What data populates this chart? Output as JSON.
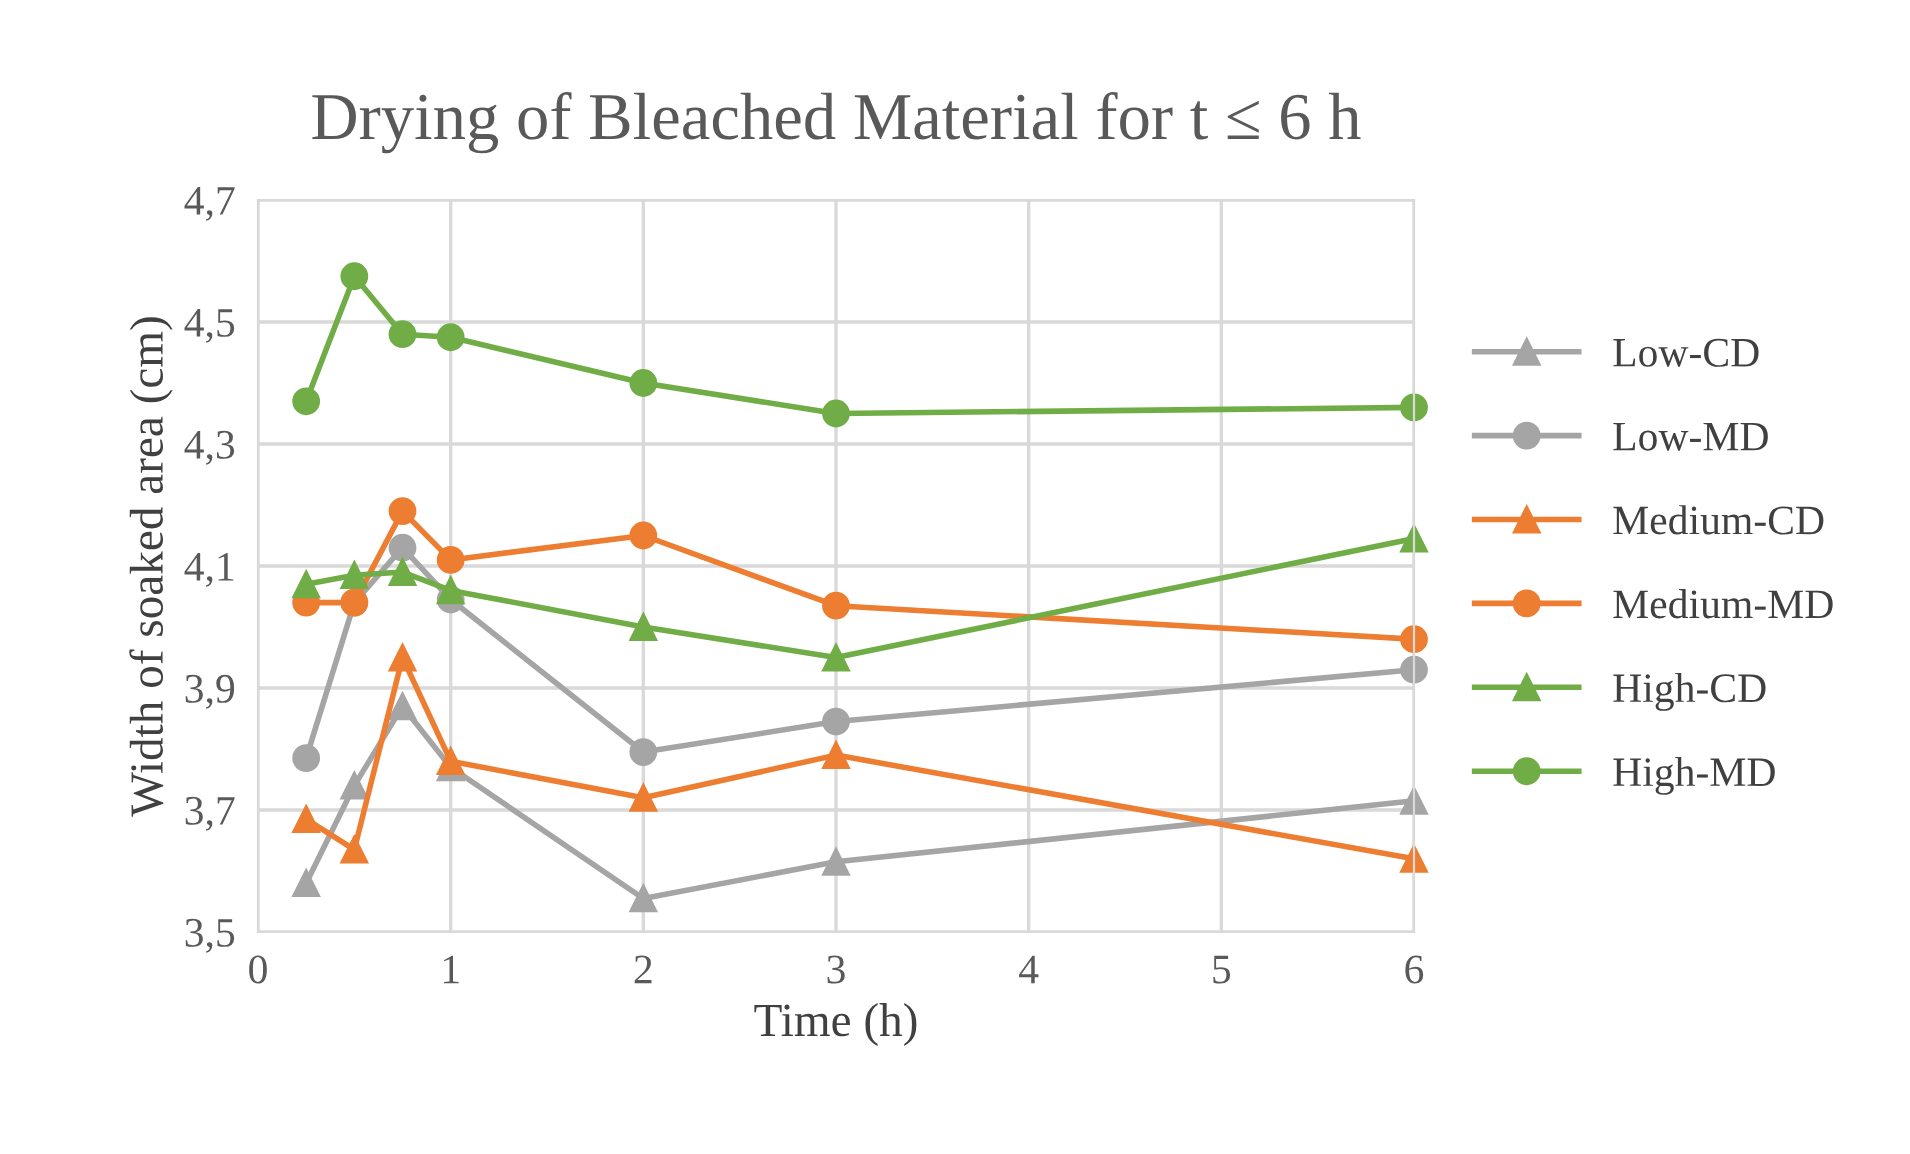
{
  "chart_data": {
    "type": "line",
    "title": "Drying of Bleached Material for t ≤ 6 h",
    "xlabel": "Time (h)",
    "ylabel": "Width of soaked area (cm)",
    "x": [
      0.25,
      0.5,
      0.75,
      1,
      2,
      3,
      6
    ],
    "xlim": [
      0,
      6
    ],
    "xticks": [
      0,
      1,
      2,
      3,
      4,
      5,
      6
    ],
    "ylim": [
      3.5,
      4.7
    ],
    "yticks": [
      {
        "value": 3.5,
        "label": "3,5"
      },
      {
        "value": 3.7,
        "label": "3,7"
      },
      {
        "value": 3.9,
        "label": "3,9"
      },
      {
        "value": 4.1,
        "label": "4,1"
      },
      {
        "value": 4.3,
        "label": "4,3"
      },
      {
        "value": 4.5,
        "label": "4,5"
      },
      {
        "value": 4.7,
        "label": "4,7"
      }
    ],
    "grid": true,
    "legend": "right",
    "series": [
      {
        "name": "Low-CD",
        "color": "#a5a5a5",
        "marker": "triangle",
        "values": [
          3.58,
          3.74,
          3.87,
          3.77,
          3.555,
          3.615,
          3.715
        ]
      },
      {
        "name": "Low-MD",
        "color": "#a5a5a5",
        "marker": "circle",
        "values": [
          3.785,
          4.04,
          4.13,
          4.045,
          3.795,
          3.845,
          3.93
        ]
      },
      {
        "name": "Medium-CD",
        "color": "#ed7d31",
        "marker": "triangle",
        "values": [
          3.685,
          3.635,
          3.95,
          3.78,
          3.72,
          3.79,
          3.62
        ]
      },
      {
        "name": "Medium-MD",
        "color": "#ed7d31",
        "marker": "circle",
        "values": [
          4.04,
          4.04,
          4.19,
          4.11,
          4.15,
          4.035,
          3.98
        ]
      },
      {
        "name": "High-CD",
        "color": "#70ad47",
        "marker": "triangle",
        "values": [
          4.07,
          4.085,
          4.09,
          4.06,
          4.0,
          3.95,
          4.145
        ]
      },
      {
        "name": "High-MD",
        "color": "#70ad47",
        "marker": "circle",
        "values": [
          4.37,
          4.575,
          4.48,
          4.475,
          4.4,
          4.35,
          4.36
        ]
      }
    ]
  }
}
